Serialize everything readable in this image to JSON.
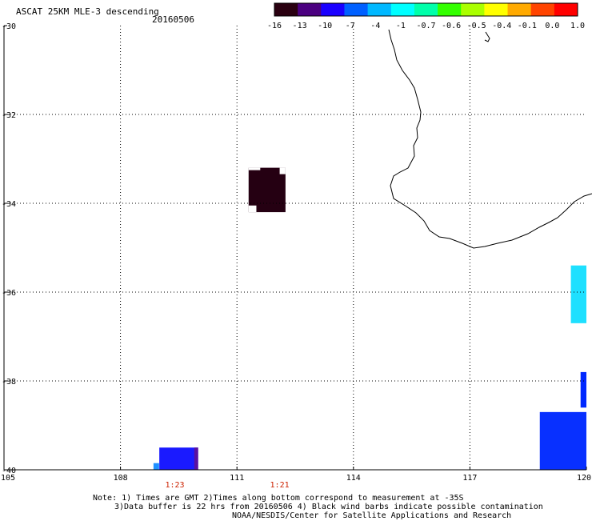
{
  "header": {
    "title": "ASCAT 25KM MLE-3 descending",
    "date": "20160506"
  },
  "colorbar": {
    "labels": [
      "-16",
      "-13",
      "-10",
      "-7",
      "-4",
      "-1",
      "-0.7",
      "-0.6",
      "-0.5",
      "-0.4",
      "-0.1",
      "0.0",
      "1.0"
    ],
    "colors": [
      "#2a0010",
      "#4b0080",
      "#1a00ff",
      "#0060ff",
      "#00b8ff",
      "#00ffff",
      "#00ffaa",
      "#33ff00",
      "#aaff00",
      "#ffff00",
      "#ffaa00",
      "#ff4400",
      "#ff0000"
    ]
  },
  "map": {
    "lon_range": [
      105,
      120
    ],
    "lat_range": [
      -40,
      -30
    ],
    "lon_ticks": [
      "105",
      "108",
      "111",
      "114",
      "117",
      "120"
    ],
    "lat_ticks": [
      "-30",
      "-32",
      "-34",
      "-36",
      "-38",
      "-40"
    ],
    "time_labels": [
      "1:23",
      "1:21"
    ],
    "data_patches": [
      {
        "label": "dark-patch",
        "lon": [
          111.3,
          112.25
        ],
        "lat": [
          -34.2,
          -33.2
        ],
        "color": "#250012"
      },
      {
        "label": "cyan-patch",
        "lon": [
          119.6,
          120
        ],
        "lat": [
          -36.7,
          -35.4
        ],
        "color": "#1ee0ff"
      },
      {
        "label": "blue-patch-right-mid",
        "lon": [
          119.85,
          120
        ],
        "lat": [
          -38.6,
          -37.8
        ],
        "color": "#0028ff"
      },
      {
        "label": "blue-patch-right-bottom",
        "lon": [
          118.8,
          120
        ],
        "lat": [
          -40,
          -38.7
        ],
        "color": "#0830ff"
      },
      {
        "label": "blue-patch-bottom-left",
        "lon": [
          109.0,
          110.0
        ],
        "lat": [
          -40,
          -39.5
        ],
        "color": "#1a1aff"
      }
    ]
  },
  "footer": {
    "line1": "Note: 1) Times are GMT 2)Times along bottom correspond to measurement at -35S",
    "line2": "3)Data buffer is 22 hrs from 20160506 4) Black wind barbs indicate possible contamination",
    "line3": "NOAA/NESDIS/Center for Satellite Applications and Research"
  }
}
